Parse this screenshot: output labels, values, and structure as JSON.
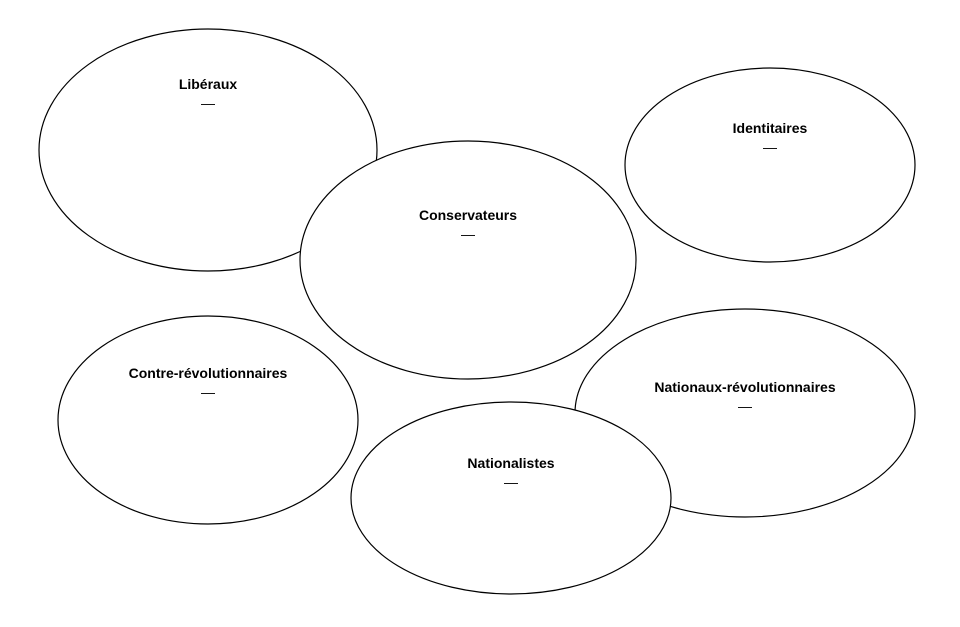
{
  "groups": [
    {
      "id": "liberaux",
      "label": "Libéraux",
      "dash": "—"
    },
    {
      "id": "identitaires",
      "label": "Identitaires",
      "dash": "—"
    },
    {
      "id": "conservateurs",
      "label": "Conservateurs",
      "dash": "—"
    },
    {
      "id": "contre-revolutionnaires",
      "label": "Contre-révolutionnaires",
      "dash": "—"
    },
    {
      "id": "nationaux-revolutionnaires",
      "label": "Nationaux-révolutionnaires",
      "dash": "—"
    },
    {
      "id": "nationalistes",
      "label": "Nationalistes",
      "dash": "—"
    }
  ]
}
